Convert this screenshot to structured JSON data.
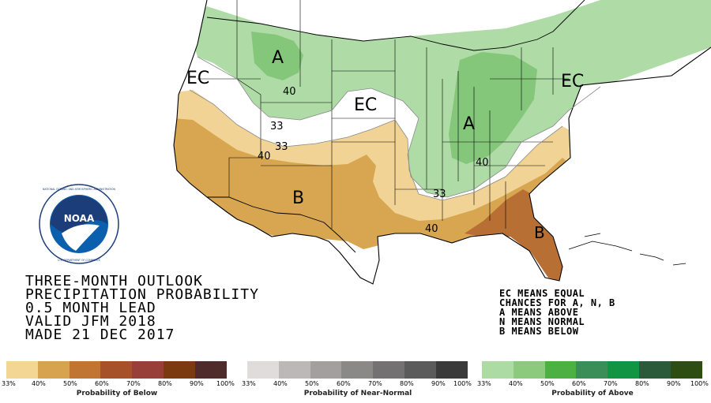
{
  "map": {
    "labels": [
      {
        "id": "ec-west",
        "text": "EC"
      },
      {
        "id": "ec-central",
        "text": "EC"
      },
      {
        "id": "ec-east",
        "text": "EC"
      },
      {
        "id": "a-north",
        "text": "A"
      },
      {
        "id": "a-ohio",
        "text": "A"
      },
      {
        "id": "b-southwest",
        "text": "B"
      },
      {
        "id": "b-florida",
        "text": "B"
      }
    ],
    "contours": [
      {
        "id": "c-40-north",
        "text": "40"
      },
      {
        "id": "c-33-west",
        "text": "33"
      },
      {
        "id": "c-33-central",
        "text": "33"
      },
      {
        "id": "c-40-west",
        "text": "40"
      },
      {
        "id": "c-40-ohio",
        "text": "40"
      },
      {
        "id": "c-33-gulf",
        "text": "33"
      },
      {
        "id": "c-40-gulf",
        "text": "40"
      }
    ],
    "colors": {
      "below_33": "#f1d495",
      "below_40": "#d8a550",
      "below_50": "#b86f33",
      "above_33": "#aedba6",
      "above_40": "#84c77a",
      "ec": "#ffffff",
      "outside": "#ffffff"
    }
  },
  "info": {
    "line1": "THREE-MONTH OUTLOOK",
    "line2": "PRECIPITATION PROBABILITY",
    "line3": "0.5 MONTH LEAD",
    "line4": "VALID JFM 2018",
    "line5": "MADE 21 DEC 2017"
  },
  "legend_key": {
    "line1": "EC MEANS EQUAL",
    "line2": "CHANCES FOR A, N, B",
    "line3": "A MEANS ABOVE",
    "line4": "N MEANS NORMAL",
    "line5": "B MEANS BELOW"
  },
  "scales": [
    {
      "title": "Probability of Below",
      "colors": [
        "#f3d693",
        "#d8a34f",
        "#c07532",
        "#a7512b",
        "#983f3a",
        "#7c3a10",
        "#4f2b2b"
      ],
      "ticks": [
        "33%",
        "40%",
        "50%",
        "60%",
        "70%",
        "80%",
        "90%",
        "100%"
      ]
    },
    {
      "title": "Probability of Near-Normal",
      "colors": [
        "#e1dcdc",
        "#bcb8b8",
        "#a39f9f",
        "#8b8888",
        "#737171",
        "#5c5b5b",
        "#3a3a3a"
      ],
      "ticks": [
        "33%",
        "40%",
        "50%",
        "60%",
        "70%",
        "80%",
        "90%",
        "100%"
      ]
    },
    {
      "title": "Probability of Above",
      "colors": [
        "#acdba4",
        "#8ccb7e",
        "#4cb043",
        "#3c8e58",
        "#119444",
        "#2a5a3a",
        "#2d4d12"
      ],
      "ticks": [
        "33%",
        "40%",
        "50%",
        "60%",
        "70%",
        "80%",
        "90%",
        "100%"
      ]
    }
  ],
  "logo": {
    "text": "NOAA",
    "ring_text": "NATIONAL OCEANIC AND ATMOSPHERIC ADMINISTRATION",
    "ring_text_bottom": "U.S. DEPARTMENT OF COMMERCE"
  }
}
